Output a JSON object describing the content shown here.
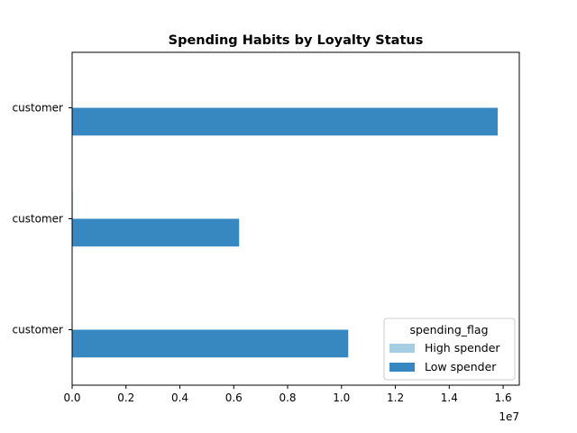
{
  "chart_data": {
    "type": "bar",
    "orientation": "horizontal",
    "title": "Spending Habits by Loyalty Status",
    "xlabel": "",
    "ylabel": "",
    "categories": [
      "customer",
      "customer",
      "customer"
    ],
    "series": [
      {
        "name": "High spender",
        "color": "#a6cee3",
        "values": [
          0,
          25000,
          0
        ]
      },
      {
        "name": "Low spender",
        "color": "#3788c0",
        "values": [
          15800000,
          6200000,
          10250000
        ]
      }
    ],
    "xlim": [
      0,
      16600000
    ],
    "x_ticks": [
      0,
      2000000,
      4000000,
      6000000,
      8000000,
      10000000,
      12000000,
      14000000,
      16000000
    ],
    "x_tick_labels": [
      "0.0",
      "0.2",
      "0.4",
      "0.6",
      "0.8",
      "1.0",
      "1.2",
      "1.4",
      "1.6"
    ],
    "x_offset_label": "1e7",
    "grid": false,
    "legend": {
      "title": "spending_flag",
      "placement": "lower-right",
      "entries": [
        "High spender",
        "Low spender"
      ]
    }
  }
}
